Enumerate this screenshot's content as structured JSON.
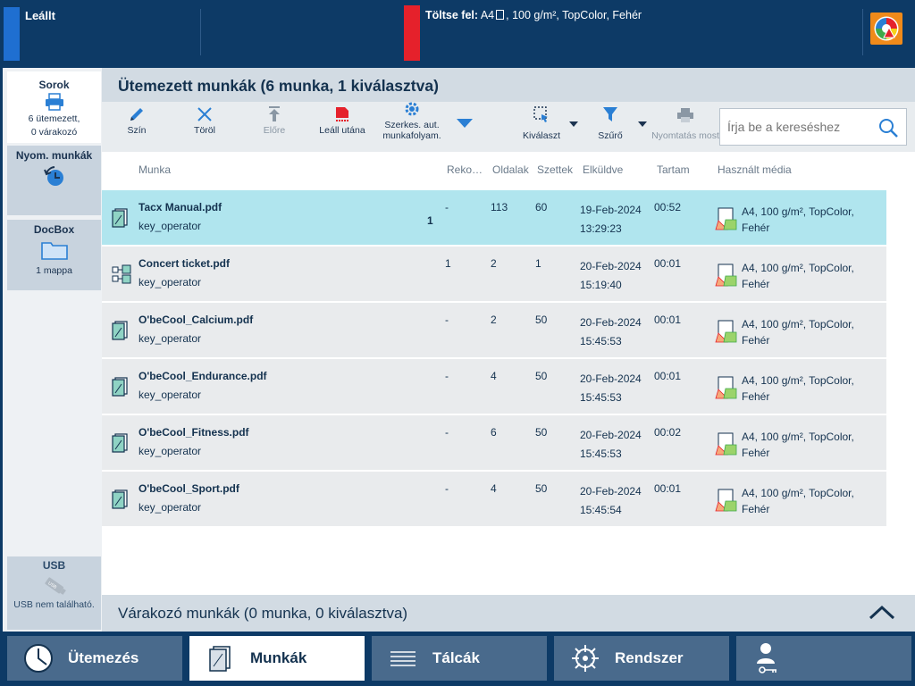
{
  "status": {
    "state": "Leállt",
    "load_label": "Töltse fel:",
    "load_format": "A4",
    "load_details": ", 100 g/m², TopColor, Fehér"
  },
  "nav": {
    "queues": {
      "title": "Sorok",
      "line1": "6 ütemezett,",
      "line2": "0 várakozó"
    },
    "print_jobs": {
      "title": "Nyom. munkák"
    },
    "docbox": {
      "title": "DocBox",
      "sub": "1 mappa"
    },
    "usb": {
      "title": "USB",
      "sub": "USB nem található."
    }
  },
  "main": {
    "title": "Ütemezett munkák (6 munka, 1 kiválasztva)",
    "toolbar": {
      "color": "Szín",
      "delete": "Töröl",
      "forward": "Előre",
      "stop_after": "Leáll utána",
      "edit_workflow_1": "Szerkes. aut.",
      "edit_workflow_2": "munkafolyam.",
      "select": "Kiválaszt",
      "filter": "Szűrő",
      "print_now": "Nyomtatás most"
    },
    "search_placeholder": "Írja be a kereséshez",
    "columns": {
      "job": "Munka",
      "records": "Reko…",
      "pages": "Oldalak",
      "sets": "Szettek",
      "sent": "Elküldve",
      "duration": "Tartam",
      "media": "Használt média"
    },
    "rows": [
      {
        "name": "Tacx Manual.pdf",
        "owner": "key_operator",
        "badge": "1",
        "records": "-",
        "pages": "113",
        "sets": "60",
        "date": "19-Feb-2024",
        "time": "13:29:23",
        "duration": "00:52",
        "media1": "A4, 100 g/m², TopColor,",
        "media2": "Fehér"
      },
      {
        "name": "Concert ticket.pdf",
        "owner": "key_operator",
        "badge": "",
        "records": "1",
        "pages": "2",
        "sets": "1",
        "date": "20-Feb-2024",
        "time": "15:19:40",
        "duration": "00:01",
        "media1": "A4, 100 g/m², TopColor,",
        "media2": "Fehér"
      },
      {
        "name": "O'beCool_Calcium.pdf",
        "owner": "key_operator",
        "badge": "",
        "records": "-",
        "pages": "2",
        "sets": "50",
        "date": "20-Feb-2024",
        "time": "15:45:53",
        "duration": "00:01",
        "media1": "A4, 100 g/m², TopColor,",
        "media2": "Fehér"
      },
      {
        "name": "O'beCool_Endurance.pdf",
        "owner": "key_operator",
        "badge": "",
        "records": "-",
        "pages": "4",
        "sets": "50",
        "date": "20-Feb-2024",
        "time": "15:45:53",
        "duration": "00:01",
        "media1": "A4, 100 g/m², TopColor,",
        "media2": "Fehér"
      },
      {
        "name": "O'beCool_Fitness.pdf",
        "owner": "key_operator",
        "badge": "",
        "records": "-",
        "pages": "6",
        "sets": "50",
        "date": "20-Feb-2024",
        "time": "15:45:53",
        "duration": "00:02",
        "media1": "A4, 100 g/m², TopColor,",
        "media2": "Fehér"
      },
      {
        "name": "O'beCool_Sport.pdf",
        "owner": "key_operator",
        "badge": "",
        "records": "-",
        "pages": "4",
        "sets": "50",
        "date": "20-Feb-2024",
        "time": "15:45:54",
        "duration": "00:01",
        "media1": "A4, 100 g/m², TopColor,",
        "media2": "Fehér"
      }
    ],
    "waiting_title": "Várakozó munkák (0 munka, 0 kiválasztva)"
  },
  "tabs": {
    "schedule": "Ütemezés",
    "jobs": "Munkák",
    "trays": "Tálcák",
    "system": "Rendszer"
  },
  "colors": {
    "header_bg": "#0d3a66",
    "selected_row": "#b0e5ee",
    "alert_red": "#e5212b",
    "status_blue": "#1f6fd1",
    "accent_blue": "#2a7fd4"
  }
}
